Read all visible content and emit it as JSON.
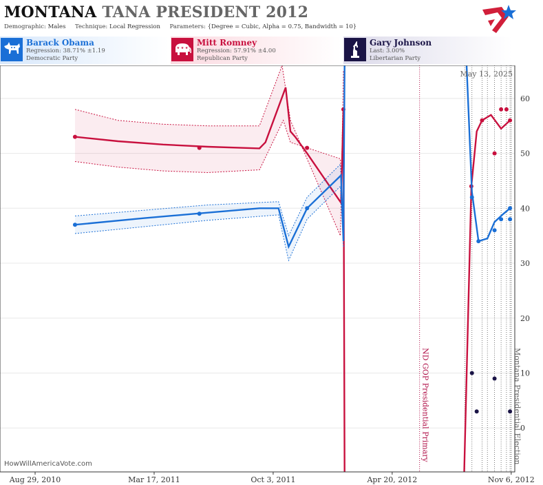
{
  "header": {
    "title_state": "MONTANA",
    "title_rest": "TANA PRESIDENT 2012",
    "demographic_label": "Demographic:",
    "demographic_value": "Males",
    "technique_label": "Technique:",
    "technique_value": "Local Regression",
    "parameters_label": "Parameters:",
    "parameters_value": "{Degree = Cubic, Alpha = 0.75, Bandwidth = 10}"
  },
  "candidates": [
    {
      "name": "Barack Obama",
      "line2": "Regression: 38.71% ±1.19",
      "line3": "Democratic Party",
      "color": "#1a6fd6",
      "icon": "donkey-icon"
    },
    {
      "name": "Mitt Romney",
      "line2": "Regression: 57.91% ±4.00",
      "line3": "Republican Party",
      "color": "#c8103e",
      "icon": "elephant-icon"
    },
    {
      "name": "Gary Johnson",
      "line2": "Last: 3.00%",
      "line3": "Libertarian Party",
      "color": "#1a1446",
      "icon": "statue-of-liberty-icon"
    }
  ],
  "source": "HowWillAmericaVote.com",
  "date_stamp": "May 13, 2025",
  "chart_data": {
    "type": "line",
    "x_axis": {
      "type": "date",
      "range": [
        "2010-07-01",
        "2012-11-12"
      ],
      "tick_labels": [
        "Aug 29, 2010",
        "Mar 17, 2011",
        "Oct 3, 2011",
        "Apr 20, 2012",
        "Nov 6, 2012"
      ],
      "tick_dates": [
        "2010-08-29",
        "2011-03-17",
        "2011-10-03",
        "2012-04-20",
        "2012-11-06"
      ]
    },
    "y_axis": {
      "range": [
        -8,
        66
      ],
      "ticks": [
        0,
        10,
        20,
        30,
        40,
        50,
        60
      ],
      "position": "right"
    },
    "grid": true,
    "annotations": [
      {
        "date": "2012-06-05",
        "label": "ND GOP Presidential Primary",
        "color": "#b01048"
      },
      {
        "date": "2012-11-06",
        "label": "Montana Presidential Election",
        "color": "#666666"
      }
    ],
    "poll_dates": [
      "2012-08-20",
      "2012-09-01",
      "2012-09-18",
      "2012-09-27",
      "2012-10-09",
      "2012-10-20",
      "2012-10-29",
      "2012-11-04"
    ],
    "series": [
      {
        "name": "Mitt Romney",
        "color": "#c8103e",
        "trend": [
          {
            "x": "2010-11-04",
            "y": 53
          },
          {
            "x": "2011-01-15",
            "y": 52.2
          },
          {
            "x": "2011-04-01",
            "y": 51.6
          },
          {
            "x": "2011-06-15",
            "y": 51.2
          },
          {
            "x": "2011-09-10",
            "y": 50.9
          },
          {
            "x": "2011-09-20",
            "y": 52
          },
          {
            "x": "2011-10-24",
            "y": 62
          },
          {
            "x": "2011-11-01",
            "y": 54
          },
          {
            "x": "2011-11-09",
            "y": 53
          },
          {
            "x": "2011-11-29",
            "y": 50
          },
          {
            "x": "2012-01-25",
            "y": 41
          },
          {
            "x": "2012-01-29",
            "y": 58
          },
          {
            "x": "2012-01-31",
            "y": -8
          }
        ],
        "trend_resumes": [
          {
            "x": "2012-08-19",
            "y": -8
          },
          {
            "x": "2012-08-31",
            "y": 44
          },
          {
            "x": "2012-09-09",
            "y": 54
          },
          {
            "x": "2012-09-18",
            "y": 56
          },
          {
            "x": "2012-10-03",
            "y": 57
          },
          {
            "x": "2012-10-20",
            "y": 54.5
          },
          {
            "x": "2012-11-04",
            "y": 56
          }
        ],
        "upper": [
          {
            "x": "2010-11-04",
            "y": 58
          },
          {
            "x": "2011-01-15",
            "y": 56
          },
          {
            "x": "2011-04-01",
            "y": 55.3
          },
          {
            "x": "2011-06-15",
            "y": 55
          },
          {
            "x": "2011-09-10",
            "y": 55
          },
          {
            "x": "2011-10-18",
            "y": 66
          },
          {
            "x": "2011-11-01",
            "y": 56
          },
          {
            "x": "2012-01-24",
            "y": 35
          },
          {
            "x": "2012-01-29",
            "y": 65
          }
        ],
        "lower": [
          {
            "x": "2010-11-04",
            "y": 48.5
          },
          {
            "x": "2011-01-15",
            "y": 47.5
          },
          {
            "x": "2011-04-01",
            "y": 46.8
          },
          {
            "x": "2011-06-15",
            "y": 46.5
          },
          {
            "x": "2011-09-10",
            "y": 47
          },
          {
            "x": "2011-10-20",
            "y": 56
          },
          {
            "x": "2011-11-01",
            "y": 52
          },
          {
            "x": "2012-01-24",
            "y": 49
          },
          {
            "x": "2012-01-29",
            "y": 33
          }
        ],
        "points": [
          {
            "x": "2010-11-04",
            "y": 53
          },
          {
            "x": "2011-06-01",
            "y": 51
          },
          {
            "x": "2011-11-29",
            "y": 51
          },
          {
            "x": "2012-01-29",
            "y": 58
          },
          {
            "x": "2012-08-31",
            "y": 44
          },
          {
            "x": "2012-09-18",
            "y": 56
          },
          {
            "x": "2012-10-09",
            "y": 50
          },
          {
            "x": "2012-10-20",
            "y": 58
          },
          {
            "x": "2012-10-29",
            "y": 58
          },
          {
            "x": "2012-11-04",
            "y": 56
          }
        ]
      },
      {
        "name": "Barack Obama",
        "color": "#1a6fd6",
        "trend": [
          {
            "x": "2010-11-04",
            "y": 37
          },
          {
            "x": "2011-03-01",
            "y": 38.2
          },
          {
            "x": "2011-06-15",
            "y": 39.2
          },
          {
            "x": "2011-09-10",
            "y": 40
          },
          {
            "x": "2011-10-12",
            "y": 40
          },
          {
            "x": "2011-10-29",
            "y": 33
          },
          {
            "x": "2011-11-29",
            "y": 40
          },
          {
            "x": "2012-01-25",
            "y": 46
          },
          {
            "x": "2012-01-29",
            "y": 34
          },
          {
            "x": "2012-01-31",
            "y": 66
          }
        ],
        "trend_resumes": [
          {
            "x": "2012-08-23",
            "y": 66
          },
          {
            "x": "2012-09-01",
            "y": 43
          },
          {
            "x": "2012-09-12",
            "y": 34
          },
          {
            "x": "2012-09-27",
            "y": 34.5
          },
          {
            "x": "2012-10-09",
            "y": 37.5
          },
          {
            "x": "2012-10-24",
            "y": 39
          },
          {
            "x": "2012-11-04",
            "y": 40
          }
        ],
        "upper": [
          {
            "x": "2010-11-04",
            "y": 38.6
          },
          {
            "x": "2011-06-15",
            "y": 40.6
          },
          {
            "x": "2011-10-12",
            "y": 41.2
          },
          {
            "x": "2011-10-29",
            "y": 35
          },
          {
            "x": "2011-11-29",
            "y": 42
          },
          {
            "x": "2012-01-24",
            "y": 48
          },
          {
            "x": "2012-01-29",
            "y": 35
          }
        ],
        "lower": [
          {
            "x": "2010-11-04",
            "y": 35.4
          },
          {
            "x": "2011-06-15",
            "y": 37.8
          },
          {
            "x": "2011-10-12",
            "y": 38.8
          },
          {
            "x": "2011-10-29",
            "y": 30.5
          },
          {
            "x": "2011-11-29",
            "y": 38
          },
          {
            "x": "2012-01-24",
            "y": 44
          },
          {
            "x": "2012-01-29",
            "y": 33
          }
        ],
        "points": [
          {
            "x": "2010-11-04",
            "y": 37
          },
          {
            "x": "2011-06-01",
            "y": 39
          },
          {
            "x": "2011-11-29",
            "y": 40
          },
          {
            "x": "2012-09-01",
            "y": 42
          },
          {
            "x": "2012-09-12",
            "y": 34
          },
          {
            "x": "2012-10-09",
            "y": 36
          },
          {
            "x": "2012-10-20",
            "y": 38
          },
          {
            "x": "2012-11-04",
            "y": 38
          },
          {
            "x": "2012-11-04",
            "y": 40
          }
        ]
      },
      {
        "name": "Gary Johnson",
        "color": "#1a1446",
        "points": [
          {
            "x": "2012-09-01",
            "y": 10
          },
          {
            "x": "2012-09-09",
            "y": 3
          },
          {
            "x": "2012-10-09",
            "y": 9
          },
          {
            "x": "2012-11-04",
            "y": 3
          }
        ]
      }
    ]
  }
}
